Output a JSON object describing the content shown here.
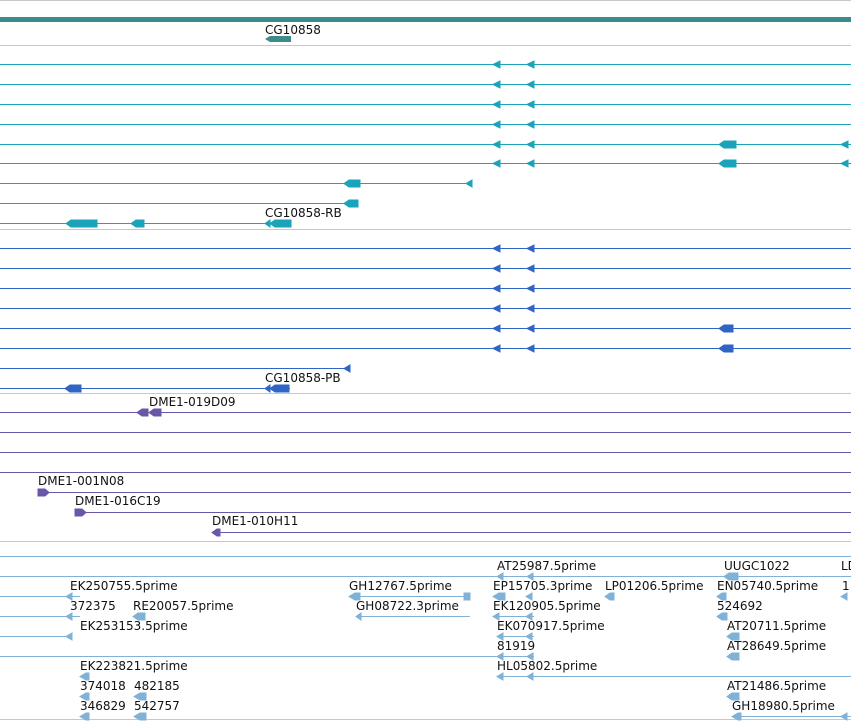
{
  "tracks": {
    "gene": {
      "color": "#3b8c8a",
      "label": "CG10858"
    },
    "transcripts_rb": {
      "color": "#1ba3b9",
      "label": "CG10858-RB"
    },
    "transcripts_pb": {
      "color": "#2f66c6",
      "label": "CG10858-PB"
    },
    "clones": {
      "color": "#6b57a8",
      "labels": [
        "DME1-019D09",
        "DME1-001N08",
        "DME1-016C19",
        "DME1-010H11"
      ]
    },
    "ests": {
      "color": "#7fb2d6",
      "labels": [
        "AT25987.5prime",
        "UUGC1022",
        "LD",
        "EK250755.5prime",
        "GH12767.5prime",
        "EP15705.3prime",
        "LP01206.5prime",
        "EN05740.5prime",
        "1",
        "372375",
        "RE20057.5prime",
        "GH08722.3prime",
        "EK120905.5prime",
        "524692",
        "EK253153.5prime",
        "EK070917.5prime",
        "AT20711.5prime",
        "81919",
        "AT28649.5prime",
        "EK223821.5prime",
        "HL05802.5prime",
        "374018",
        "482185",
        "AT21486.5prime",
        "346829",
        "542757",
        "GH18980.5prime"
      ]
    }
  }
}
